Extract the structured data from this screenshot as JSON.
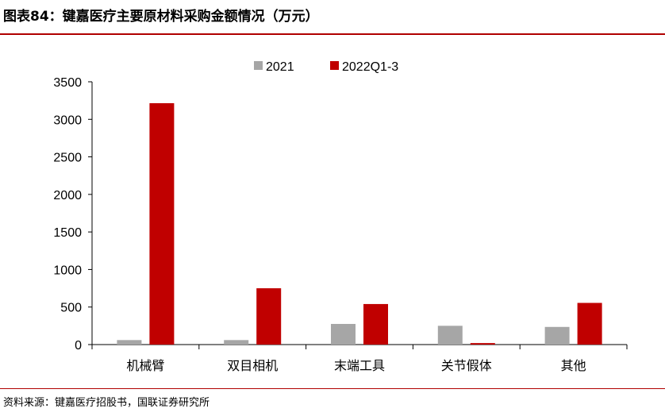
{
  "figure": {
    "title": "图表84：键嘉医疗主要原材料采购金额情况（万元）",
    "source": "资料来源：键嘉医疗招股书，国联证券研究所"
  },
  "colors": {
    "series_2021": "#a6a6a6",
    "series_2022": "#c00000",
    "accent_rule": "#b00000"
  },
  "chart_data": {
    "type": "bar",
    "categories": [
      "机械臂",
      "双目相机",
      "末端工具",
      "关节假体",
      "其他"
    ],
    "series": [
      {
        "name": "2021",
        "values": [
          60,
          60,
          275,
          250,
          235
        ]
      },
      {
        "name": "2022Q1-3",
        "values": [
          3215,
          750,
          540,
          20,
          555
        ]
      }
    ],
    "ylim": [
      0,
      3500
    ],
    "yticks": [
      0,
      500,
      1000,
      1500,
      2000,
      2500,
      3000,
      3500
    ],
    "grid": false,
    "legend_position": "top-center"
  }
}
